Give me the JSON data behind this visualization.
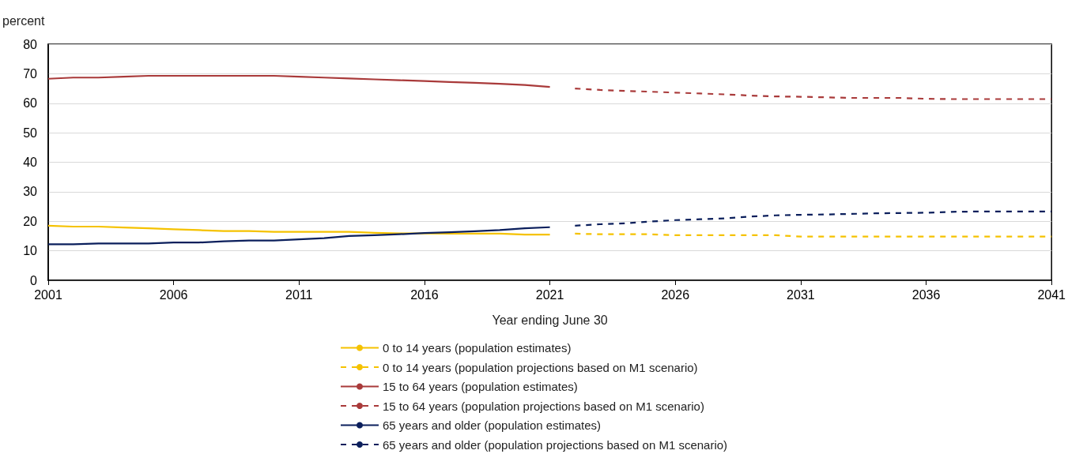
{
  "chart_data": {
    "type": "line",
    "ylabel": "percent",
    "xlabel": "Year ending June 30",
    "xlim": [
      2001,
      2041
    ],
    "xticks": [
      2001,
      2006,
      2011,
      2016,
      2021,
      2026,
      2031,
      2036,
      2041
    ],
    "ylim": [
      0,
      80
    ],
    "yticks": [
      0,
      10,
      20,
      30,
      40,
      50,
      60,
      70,
      80
    ],
    "grid": "y",
    "legend": "bottom",
    "marker": "none",
    "series": [
      {
        "name": "0 to 14 years (population estimates)",
        "color": "#f5c200",
        "line_style": "solid",
        "x": [
          2001,
          2002,
          2003,
          2004,
          2005,
          2006,
          2007,
          2008,
          2009,
          2010,
          2011,
          2012,
          2013,
          2014,
          2015,
          2016,
          2017,
          2018,
          2019,
          2020,
          2021
        ],
        "values": [
          18.5,
          18.2,
          18.2,
          17.9,
          17.6,
          17.3,
          17.0,
          16.7,
          16.7,
          16.4,
          16.4,
          16.4,
          16.4,
          16.1,
          15.9,
          15.9,
          15.8,
          15.8,
          15.8,
          15.5,
          15.5
        ]
      },
      {
        "name": "0 to 14 years (population projections based on M1 scenario)",
        "color": "#f5c200",
        "line_style": "dashed",
        "x": [
          2022,
          2023,
          2024,
          2025,
          2026,
          2027,
          2028,
          2029,
          2030,
          2031,
          2032,
          2033,
          2034,
          2035,
          2036,
          2037,
          2038,
          2039,
          2040,
          2041
        ],
        "values": [
          15.8,
          15.6,
          15.6,
          15.6,
          15.3,
          15.3,
          15.3,
          15.3,
          15.3,
          14.8,
          14.8,
          14.8,
          14.8,
          14.8,
          14.8,
          14.8,
          14.8,
          14.8,
          14.8,
          14.8
        ]
      },
      {
        "name": "15 to 64 years (population estimates)",
        "color": "#a93a3a",
        "line_style": "solid",
        "x": [
          2001,
          2002,
          2003,
          2004,
          2005,
          2006,
          2007,
          2008,
          2009,
          2010,
          2011,
          2012,
          2013,
          2014,
          2015,
          2016,
          2017,
          2018,
          2019,
          2020,
          2021
        ],
        "values": [
          68.3,
          68.7,
          68.7,
          69.0,
          69.3,
          69.3,
          69.3,
          69.3,
          69.3,
          69.3,
          69.0,
          68.7,
          68.4,
          68.1,
          67.8,
          67.5,
          67.2,
          66.9,
          66.6,
          66.2,
          65.5
        ]
      },
      {
        "name": "15 to 64 years (population projections based on M1 scenario)",
        "color": "#a93a3a",
        "line_style": "dashed",
        "x": [
          2022,
          2023,
          2024,
          2025,
          2026,
          2027,
          2028,
          2029,
          2030,
          2031,
          2032,
          2033,
          2034,
          2035,
          2036,
          2037,
          2038,
          2039,
          2040,
          2041
        ],
        "values": [
          65.0,
          64.5,
          64.2,
          63.9,
          63.6,
          63.3,
          63.0,
          62.6,
          62.3,
          62.2,
          62.0,
          61.8,
          61.8,
          61.8,
          61.5,
          61.4,
          61.4,
          61.4,
          61.4,
          61.4
        ]
      },
      {
        "name": "65 years and older (population estimates)",
        "color": "#0b1f5c",
        "line_style": "solid",
        "x": [
          2001,
          2002,
          2003,
          2004,
          2005,
          2006,
          2007,
          2008,
          2009,
          2010,
          2011,
          2012,
          2013,
          2014,
          2015,
          2016,
          2017,
          2018,
          2019,
          2020,
          2021
        ],
        "values": [
          12.2,
          12.2,
          12.5,
          12.5,
          12.5,
          12.8,
          12.8,
          13.2,
          13.5,
          13.5,
          13.9,
          14.3,
          15.0,
          15.3,
          15.6,
          16.0,
          16.3,
          16.6,
          17.0,
          17.6,
          18.0
        ]
      },
      {
        "name": "65 years and older (population projections based on M1 scenario)",
        "color": "#0b1f5c",
        "line_style": "dashed",
        "x": [
          2022,
          2023,
          2024,
          2025,
          2026,
          2027,
          2028,
          2029,
          2030,
          2031,
          2032,
          2033,
          2034,
          2035,
          2036,
          2037,
          2038,
          2039,
          2040,
          2041
        ],
        "values": [
          18.5,
          19.0,
          19.3,
          19.9,
          20.4,
          20.7,
          21.0,
          21.6,
          22.0,
          22.2,
          22.3,
          22.5,
          22.7,
          22.8,
          22.9,
          23.2,
          23.3,
          23.3,
          23.3,
          23.3
        ]
      }
    ]
  }
}
